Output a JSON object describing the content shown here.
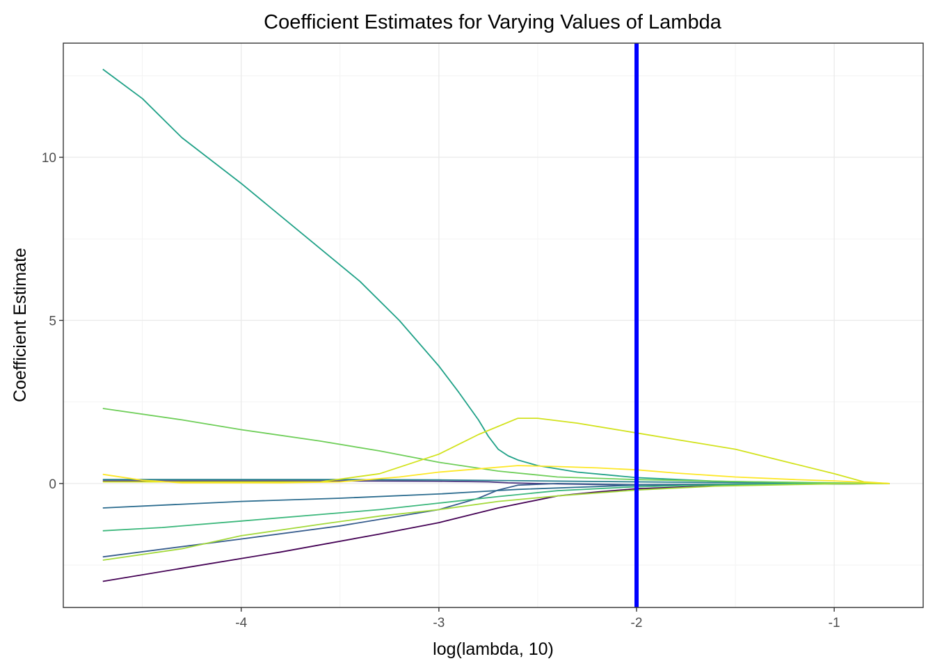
{
  "chart_data": {
    "type": "line",
    "title": "Coefficient Estimates for Varying Values of Lambda",
    "xlabel": "log(lambda, 10)",
    "ylabel": "Coefficient Estimate",
    "xlim": [
      -4.9,
      -0.55
    ],
    "ylim": [
      -3.8,
      13.5
    ],
    "xticks": [
      -4,
      -3,
      -2,
      -1
    ],
    "xtick_labels": [
      "-4",
      "-3",
      "-2",
      "-1"
    ],
    "yticks": [
      0,
      5,
      10
    ],
    "ytick_labels": [
      "0",
      "5",
      "10"
    ],
    "grid": true,
    "legend": "none",
    "vline": {
      "x": -2.0,
      "color": "#0000ff"
    },
    "series": [
      {
        "color": "#440154",
        "x": [
          -4.7,
          -4.3,
          -3.8,
          -3.3,
          -3.0,
          -2.7,
          -2.4,
          -2.2,
          -2.0,
          -1.6,
          -1.2,
          -1.0,
          -0.72
        ],
        "values": [
          -3.0,
          -2.6,
          -2.1,
          -1.55,
          -1.2,
          -0.75,
          -0.38,
          -0.26,
          -0.16,
          -0.07,
          -0.02,
          -0.01,
          0.0
        ]
      },
      {
        "color": "#46327e",
        "x": [
          -4.7,
          -4.0,
          -3.5,
          -3.0,
          -2.75,
          -2.65,
          -2.5,
          -2.0,
          -1.5,
          -1.0,
          -0.72
        ],
        "values": [
          0.08,
          0.08,
          0.08,
          0.07,
          0.05,
          0.02,
          0.0,
          -0.05,
          -0.03,
          -0.01,
          0.0
        ]
      },
      {
        "color": "#365c8d",
        "x": [
          -4.7,
          -4.0,
          -3.5,
          -3.0,
          -2.8,
          -2.7,
          -2.6,
          -2.4,
          -2.0,
          -1.5,
          -1.0,
          -0.72
        ],
        "values": [
          -2.25,
          -1.7,
          -1.3,
          -0.8,
          -0.45,
          -0.2,
          -0.05,
          0.0,
          -0.04,
          -0.02,
          -0.01,
          0.0
        ]
      },
      {
        "color": "#2a6b8e",
        "x": [
          -4.7,
          -4.0,
          -3.5,
          -3.0,
          -2.8,
          -2.6,
          -2.0,
          -1.5,
          -1.0,
          -0.72
        ],
        "values": [
          -0.75,
          -0.55,
          -0.45,
          -0.32,
          -0.25,
          -0.18,
          -0.05,
          -0.02,
          -0.01,
          0.0
        ]
      },
      {
        "color": "#277f8e",
        "x": [
          -4.7,
          -4.0,
          -3.5,
          -3.0,
          -2.5,
          -2.0,
          -1.5,
          -1.0,
          -0.72
        ],
        "values": [
          0.12,
          0.12,
          0.12,
          0.11,
          0.08,
          0.05,
          0.03,
          0.01,
          0.0
        ]
      },
      {
        "color": "#1fa187",
        "x": [
          -4.7,
          -4.5,
          -4.3,
          -4.0,
          -3.7,
          -3.4,
          -3.2,
          -3.0,
          -2.9,
          -2.8,
          -2.75,
          -2.7,
          -2.65,
          -2.6,
          -2.5,
          -2.3,
          -2.0,
          -1.6,
          -1.2,
          -1.0,
          -0.72
        ],
        "values": [
          12.7,
          11.8,
          10.6,
          9.2,
          7.7,
          6.2,
          5.0,
          3.6,
          2.8,
          1.95,
          1.45,
          1.05,
          0.85,
          0.72,
          0.55,
          0.35,
          0.18,
          0.07,
          0.03,
          0.01,
          0.0
        ]
      },
      {
        "color": "#3bb77b",
        "x": [
          -4.7,
          -4.4,
          -4.0,
          -3.6,
          -3.3,
          -3.0,
          -2.7,
          -2.4,
          -2.0,
          -1.6,
          -1.2,
          -1.0,
          -0.72
        ],
        "values": [
          -1.45,
          -1.35,
          -1.15,
          -0.95,
          -0.8,
          -0.6,
          -0.4,
          -0.22,
          -0.1,
          -0.04,
          -0.01,
          -0.01,
          0.0
        ]
      },
      {
        "color": "#6ece58",
        "x": [
          -4.7,
          -4.3,
          -4.0,
          -3.6,
          -3.3,
          -3.0,
          -2.7,
          -2.4,
          -2.0,
          -1.5,
          -1.0,
          -0.72
        ],
        "values": [
          2.3,
          1.95,
          1.65,
          1.3,
          1.0,
          0.65,
          0.38,
          0.2,
          0.12,
          0.06,
          0.02,
          0.0
        ]
      },
      {
        "color": "#a3d93a",
        "x": [
          -4.7,
          -4.3,
          -4.0,
          -3.6,
          -3.3,
          -3.0,
          -2.7,
          -2.4,
          -2.0,
          -1.6,
          -1.2,
          -1.0,
          -0.72
        ],
        "values": [
          -2.35,
          -2.0,
          -1.6,
          -1.25,
          -1.0,
          -0.8,
          -0.55,
          -0.38,
          -0.2,
          -0.08,
          -0.03,
          -0.01,
          0.0
        ]
      },
      {
        "color": "#d2e21b",
        "x": [
          -4.7,
          -4.3,
          -3.8,
          -3.6,
          -3.3,
          -3.0,
          -2.8,
          -2.6,
          -2.5,
          -2.3,
          -2.0,
          -1.8,
          -1.5,
          -1.2,
          -1.0,
          -0.85,
          -0.72
        ],
        "values": [
          0.05,
          0.05,
          0.05,
          0.05,
          0.3,
          0.9,
          1.5,
          2.0,
          2.0,
          1.85,
          1.55,
          1.35,
          1.05,
          0.6,
          0.3,
          0.05,
          0.0
        ]
      },
      {
        "color": "#fde725",
        "x": [
          -4.7,
          -4.5,
          -4.3,
          -3.8,
          -3.5,
          -3.2,
          -3.0,
          -2.8,
          -2.6,
          -2.4,
          -2.2,
          -2.0,
          -1.8,
          -1.5,
          -1.2,
          -1.0,
          -0.85,
          -0.72
        ],
        "values": [
          0.28,
          0.1,
          0.02,
          0.02,
          0.05,
          0.2,
          0.35,
          0.45,
          0.55,
          0.52,
          0.48,
          0.42,
          0.32,
          0.2,
          0.12,
          0.08,
          0.04,
          0.0
        ]
      }
    ]
  }
}
